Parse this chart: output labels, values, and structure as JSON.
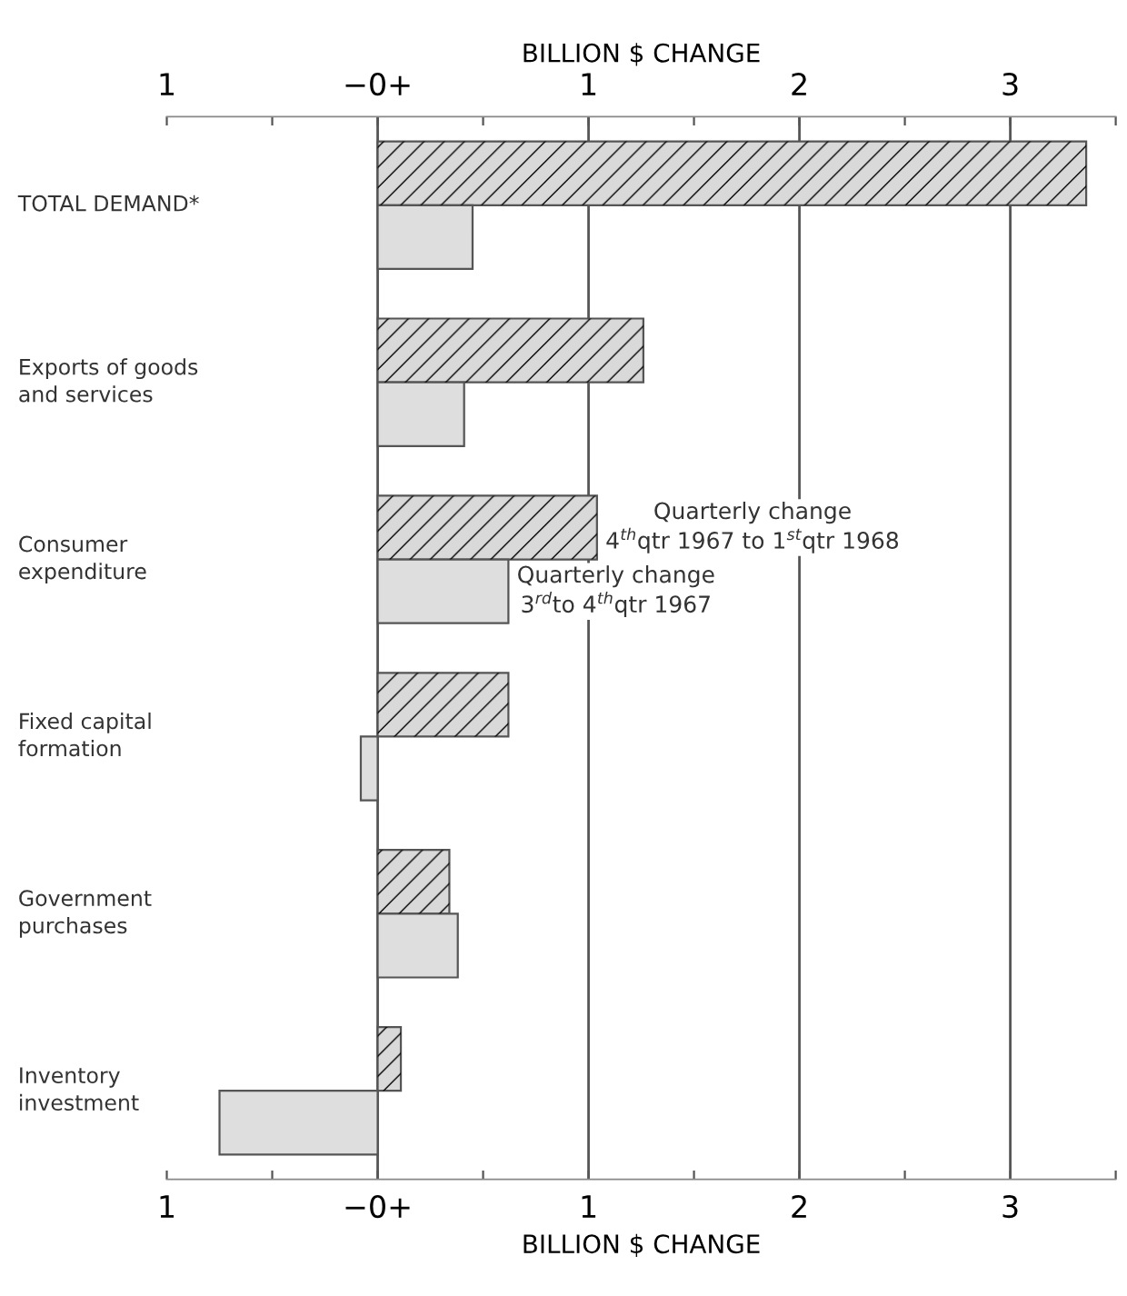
{
  "chart_data": {
    "type": "bar",
    "orientation": "horizontal",
    "categories": [
      "TOTAL DEMAND*",
      "Exports of goods\nand services",
      "Consumer\nexpenditure",
      "Fixed capital\nformation",
      "Government\npurchases",
      "Inventory\ninvestment"
    ],
    "series": [
      {
        "name": "Quarterly change\n4$^{th}$qtr 1967 to 1$^{st}$qtr 1968",
        "color": "#d9d9d9",
        "values": [
          3.36,
          1.26,
          1.04,
          0.62,
          0.34,
          0.11
        ]
      },
      {
        "name": "Quarterly change\n3$^{rd}$to 4$^{th}$qtr 1967",
        "color": "#dedede",
        "values": [
          0.45,
          0.41,
          0.62,
          -0.08,
          0.38,
          -0.75
        ]
      }
    ],
    "xlabel": "BILLION $ CHANGE",
    "x2label": "BILLION $ CHANGE",
    "xlim": [
      -1,
      3.5
    ],
    "x2lim": [
      -1,
      3.5
    ],
    "xticks": [
      {
        "value": -1,
        "label": "1"
      },
      {
        "value": -0.5,
        "label": null
      },
      {
        "value": 0,
        "label": "−0+"
      },
      {
        "value": 0.5,
        "label": null
      },
      1,
      {
        "value": 1.5,
        "label": null
      },
      2,
      {
        "value": 2.5,
        "label": null
      },
      3,
      {
        "value": 3.5,
        "label": null
      }
    ],
    "x2ticks": [
      {
        "value": -1,
        "label": "1"
      },
      {
        "value": -0.5,
        "label": null
      },
      {
        "value": 0,
        "label": "−0+"
      },
      {
        "value": 0.5,
        "label": null
      },
      1,
      {
        "value": 1.5,
        "label": null
      },
      2,
      {
        "value": 2.5,
        "label": null
      },
      3,
      {
        "value": 3.5,
        "label": null
      }
    ],
    "ref_lines": [
      {
        "axis": "x",
        "value": 0
      },
      {
        "axis": "x",
        "value": 1
      },
      {
        "axis": "x",
        "value": 2
      },
      {
        "axis": "x",
        "value": 3
      }
    ],
    "tick_labels": "x",
    "legend": false,
    "grid": false
  }
}
